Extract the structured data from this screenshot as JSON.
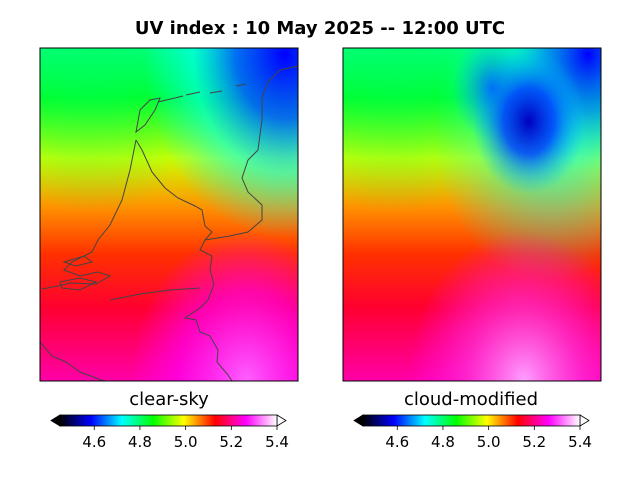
{
  "title": "UV index :  10 May 2025  --  12:00 UTC",
  "chart_data": [
    {
      "type": "heatmap",
      "label": "clear-sky",
      "region": "Netherlands",
      "description": "UV index increases from about 4.75 in the north to 5.3-5.4 in the south-east",
      "value_range_shown": [
        4.6,
        5.4
      ]
    },
    {
      "type": "heatmap",
      "label": "cloud-modified",
      "region": "Netherlands",
      "description": "Similar gradient; cloud cover lowers UV to about 4.55-4.7 over the north-east (Frisian/Wadden area)",
      "value_range_shown": [
        4.55,
        5.4
      ]
    }
  ],
  "colorbar": {
    "ticks": [
      "4.6",
      "4.8",
      "5.0",
      "5.2",
      "5.4"
    ],
    "min": 4.45,
    "max": 5.4,
    "extend": "both",
    "colors": [
      "#000000",
      "#0000ff",
      "#00ffff",
      "#00ff00",
      "#ffff00",
      "#ff0000",
      "#ff00ff",
      "#ffffff"
    ]
  }
}
